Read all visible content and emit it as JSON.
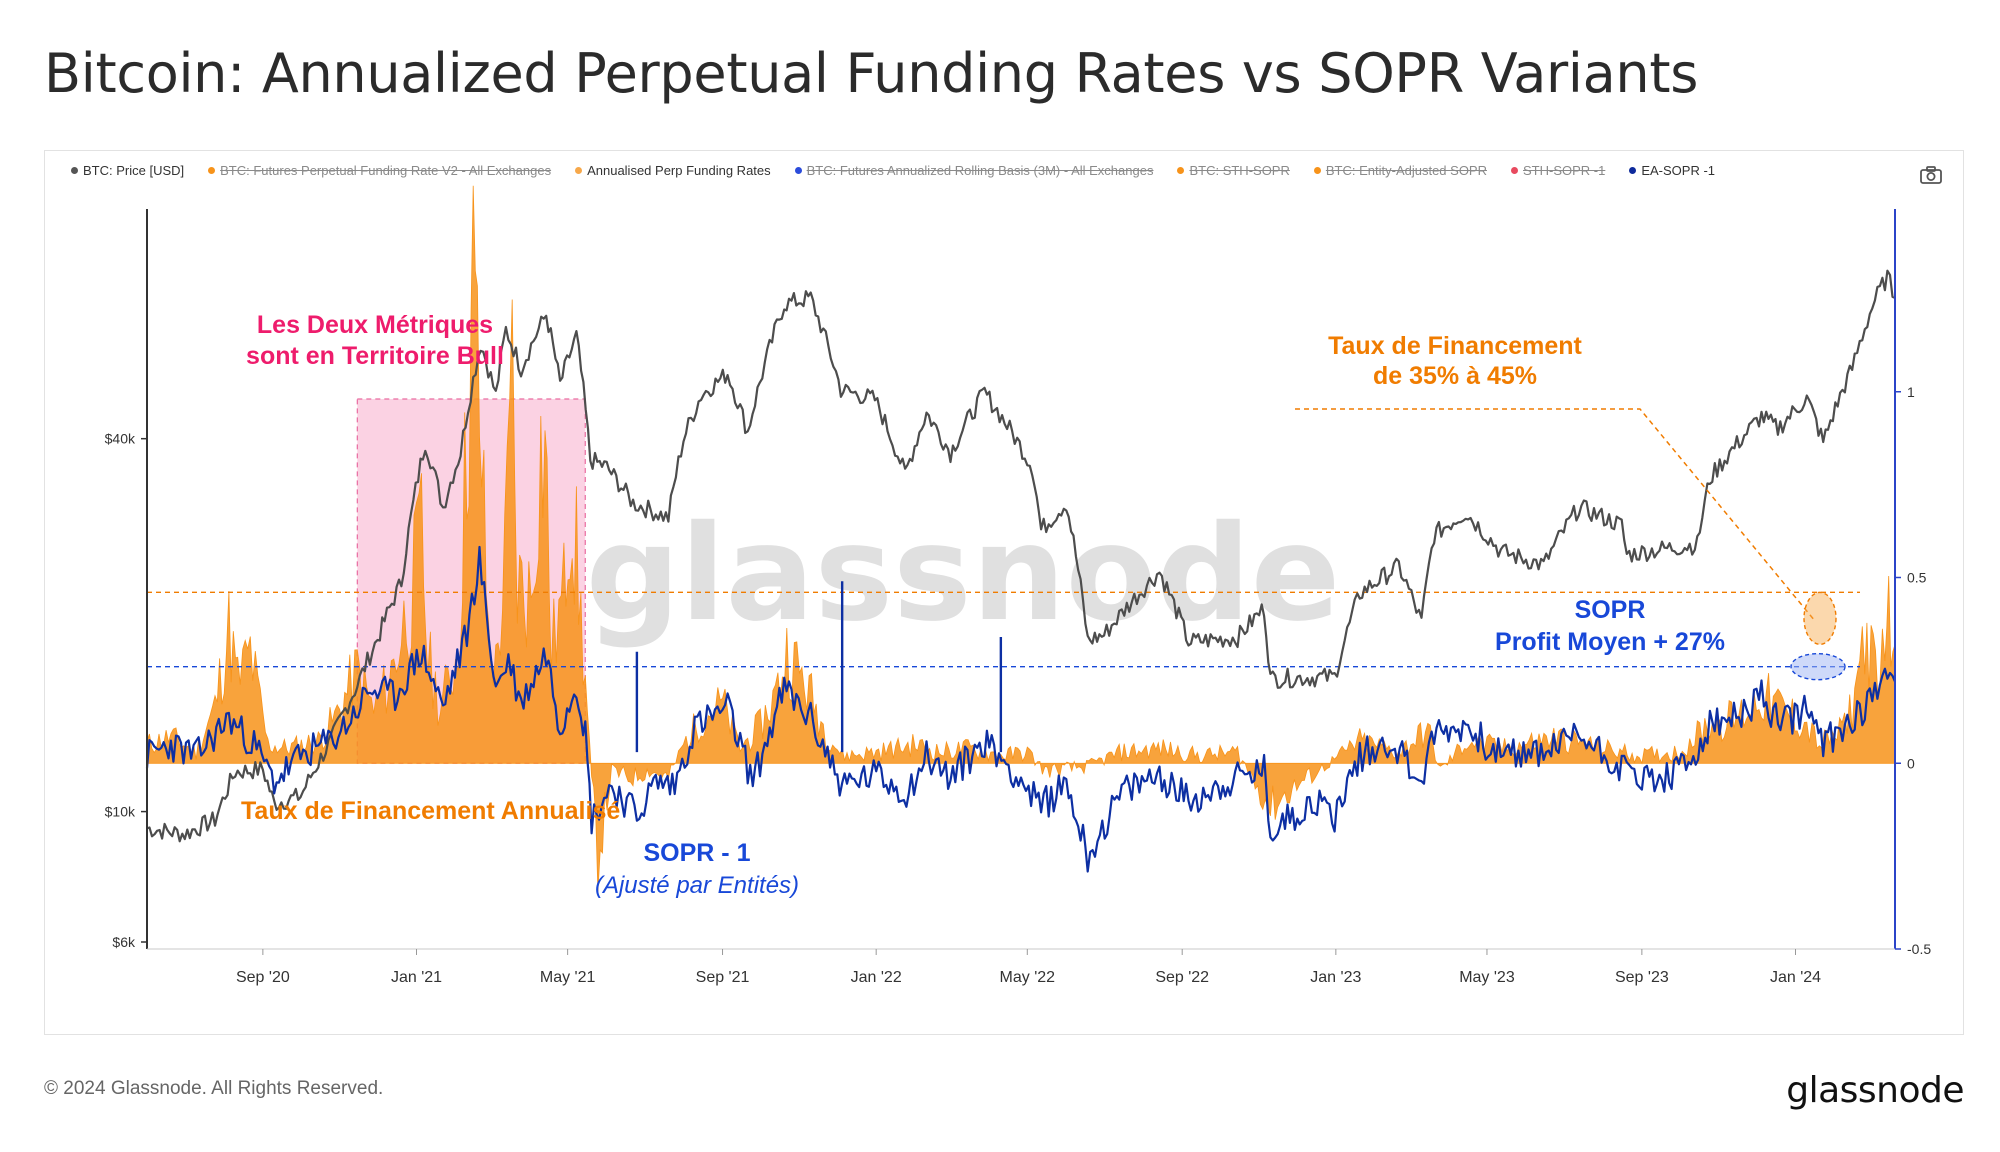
{
  "title": "Bitcoin: Annualized Perpetual Funding Rates vs SOPR Variants",
  "legend": [
    {
      "label": "BTC: Price [USD]",
      "color": "#555555",
      "enabled": true
    },
    {
      "label": "BTC: Futures Perpetual Funding Rate V2 - All Exchanges",
      "color": "#f7931a",
      "enabled": false
    },
    {
      "label": "Annualised Perp Funding Rates",
      "color": "#f7a84a",
      "enabled": true
    },
    {
      "label": "BTC: Futures Annualized Rolling Basis (3M) - All Exchanges",
      "color": "#2b4cdb",
      "enabled": false
    },
    {
      "label": "BTC: STH-SOPR",
      "color": "#f7931a",
      "enabled": false
    },
    {
      "label": "BTC: Entity-Adjusted SOPR",
      "color": "#f7931a",
      "enabled": false
    },
    {
      "label": "STH-SOPR -1",
      "color": "#e84a5f",
      "enabled": false
    },
    {
      "label": "EA-SOPR -1",
      "color": "#0e2a9c",
      "enabled": true
    }
  ],
  "watermark": "glassnode",
  "annotations": {
    "bull_box": "Les Deux Métriques sont en Territoire Bull",
    "funding_high_1": "Taux de Financement",
    "funding_high_2": "de 35% à 45%",
    "sopr_high_1": "SOPR",
    "sopr_high_2": "Profit Moyen + 27%",
    "funding_label": "Taux de Financement Annualisé",
    "sopr_label_1": "SOPR - 1",
    "sopr_label_2": "(Ajusté par Entités)"
  },
  "colors": {
    "price": "#4d4d4d",
    "funding": "#f7931a",
    "sopr": "#0d2fa3",
    "annot_orange": "#f07c00",
    "annot_blue": "#1848d8",
    "annot_pink": "#ee1c6c",
    "left_axis": "#333333",
    "right_axis": "#2b44c8"
  },
  "footer": {
    "copyright": "© 2024 Glassnode. All Rights Reserved.",
    "logo": "glassnode"
  },
  "chart_data": {
    "type": "line",
    "x_axis": {
      "ticks": [
        "Sep '20",
        "Jan '21",
        "May '21",
        "Sep '21",
        "Jan '22",
        "May '22",
        "Sep '22",
        "Jan '23",
        "May '23",
        "Sep '23",
        "Jan '24"
      ],
      "range": [
        "2020-06-01",
        "2024-03-20"
      ]
    },
    "y_left": {
      "scale": "log",
      "ticks": [
        {
          "v": 6000,
          "label": "$6k"
        },
        {
          "v": 10000,
          "label": "$10k"
        },
        {
          "v": 40000,
          "label": "$40k"
        }
      ],
      "range": [
        6000,
        95000
      ]
    },
    "y_right": {
      "scale": "linear",
      "ticks": [
        {
          "v": 1,
          "label": "1"
        },
        {
          "v": 0.5,
          "label": "0.5"
        },
        {
          "v": 0,
          "label": "0"
        },
        {
          "v": -0.5,
          "label": "-0.5"
        }
      ],
      "range": [
        -0.5,
        1.5
      ]
    },
    "reference_lines": {
      "funding": 0.46,
      "sopr": 0.26
    },
    "bull_region": [
      "2020-11-15",
      "2021-05-15"
    ],
    "series": [
      {
        "name": "BTC: Price [USD]",
        "axis": "left",
        "kind": "line",
        "points": [
          [
            "2020-06-01",
            9400
          ],
          [
            "2020-07-01",
            9200
          ],
          [
            "2020-07-25",
            9700
          ],
          [
            "2020-08-10",
            11600
          ],
          [
            "2020-09-01",
            11700
          ],
          [
            "2020-09-10",
            10300
          ],
          [
            "2020-10-01",
            10600
          ],
          [
            "2020-10-25",
            13000
          ],
          [
            "2020-11-15",
            16000
          ],
          [
            "2020-12-01",
            19000
          ],
          [
            "2020-12-20",
            23500
          ],
          [
            "2021-01-08",
            39500
          ],
          [
            "2021-01-22",
            31000
          ],
          [
            "2021-02-05",
            38000
          ],
          [
            "2021-02-21",
            57000
          ],
          [
            "2021-03-05",
            47000
          ],
          [
            "2021-03-13",
            60000
          ],
          [
            "2021-03-25",
            52000
          ],
          [
            "2021-04-14",
            63500
          ],
          [
            "2021-04-25",
            49000
          ],
          [
            "2021-05-08",
            58500
          ],
          [
            "2021-05-19",
            37000
          ],
          [
            "2021-06-01",
            36000
          ],
          [
            "2021-06-22",
            31500
          ],
          [
            "2021-07-20",
            29800
          ],
          [
            "2021-08-01",
            40000
          ],
          [
            "2021-08-15",
            47000
          ],
          [
            "2021-09-05",
            51000
          ],
          [
            "2021-09-21",
            41000
          ],
          [
            "2021-10-20",
            66000
          ],
          [
            "2021-11-10",
            67500
          ],
          [
            "2021-12-04",
            48000
          ],
          [
            "2021-12-31",
            46300
          ],
          [
            "2022-01-24",
            35000
          ],
          [
            "2022-02-10",
            44000
          ],
          [
            "2022-03-01",
            38000
          ],
          [
            "2022-03-28",
            47500
          ],
          [
            "2022-05-05",
            36000
          ],
          [
            "2022-05-12",
            28500
          ],
          [
            "2022-06-01",
            31500
          ],
          [
            "2022-06-18",
            18900
          ],
          [
            "2022-07-01",
            19300
          ],
          [
            "2022-08-14",
            24400
          ],
          [
            "2022-09-06",
            18800
          ],
          [
            "2022-10-15",
            19100
          ],
          [
            "2022-11-05",
            21300
          ],
          [
            "2022-11-10",
            16400
          ],
          [
            "2022-12-31",
            16500
          ],
          [
            "2023-01-20",
            22500
          ],
          [
            "2023-02-20",
            24900
          ],
          [
            "2023-03-10",
            20200
          ],
          [
            "2023-03-20",
            28000
          ],
          [
            "2023-04-14",
            30400
          ],
          [
            "2023-05-12",
            26300
          ],
          [
            "2023-06-15",
            25000
          ],
          [
            "2023-07-13",
            31000
          ],
          [
            "2023-08-16",
            29000
          ],
          [
            "2023-08-20",
            26000
          ],
          [
            "2023-09-15",
            26500
          ],
          [
            "2023-10-15",
            27000
          ],
          [
            "2023-10-25",
            34500
          ],
          [
            "2023-12-05",
            43500
          ],
          [
            "2023-12-18",
            41500
          ],
          [
            "2024-01-10",
            46500
          ],
          [
            "2024-01-23",
            39500
          ],
          [
            "2024-02-15",
            52000
          ],
          [
            "2024-03-04",
            67000
          ],
          [
            "2024-03-14",
            73000
          ],
          [
            "2024-03-20",
            67500
          ]
        ]
      },
      {
        "name": "Annualised Perp Funding Rates",
        "axis": "right",
        "kind": "area",
        "points": [
          [
            "2020-06-01",
            0.05
          ],
          [
            "2020-06-20",
            0.07
          ],
          [
            "2020-07-10",
            0.03
          ],
          [
            "2020-07-25",
            0.15
          ],
          [
            "2020-08-05",
            0.36
          ],
          [
            "2020-08-12",
            0.22
          ],
          [
            "2020-08-22",
            0.3
          ],
          [
            "2020-09-05",
            0.05
          ],
          [
            "2020-09-20",
            0.04
          ],
          [
            "2020-10-15",
            0.06
          ],
          [
            "2020-10-28",
            0.12
          ],
          [
            "2020-11-15",
            0.25
          ],
          [
            "2020-11-28",
            0.14
          ],
          [
            "2020-12-10",
            0.22
          ],
          [
            "2020-12-28",
            0.45
          ],
          [
            "2021-01-05",
            0.62
          ],
          [
            "2021-01-10",
            0.28
          ],
          [
            "2021-01-20",
            0.15
          ],
          [
            "2021-02-03",
            0.3
          ],
          [
            "2021-02-10",
            0.87
          ],
          [
            "2021-02-15",
            1.28
          ],
          [
            "2021-02-20",
            0.95
          ],
          [
            "2021-02-27",
            0.35
          ],
          [
            "2021-03-05",
            0.25
          ],
          [
            "2021-03-12",
            0.52
          ],
          [
            "2021-03-18",
            1.02
          ],
          [
            "2021-03-22",
            0.48
          ],
          [
            "2021-04-02",
            0.45
          ],
          [
            "2021-04-08",
            0.8
          ],
          [
            "2021-04-13",
            0.88
          ],
          [
            "2021-04-18",
            0.3
          ],
          [
            "2021-04-28",
            0.45
          ],
          [
            "2021-05-03",
            0.75
          ],
          [
            "2021-05-08",
            0.55
          ],
          [
            "2021-05-15",
            0.22
          ],
          [
            "2021-05-20",
            -0.05
          ],
          [
            "2021-05-25",
            -0.25
          ],
          [
            "2021-06-05",
            -0.02
          ],
          [
            "2021-06-20",
            -0.04
          ],
          [
            "2021-07-05",
            -0.02
          ],
          [
            "2021-07-20",
            -0.04
          ],
          [
            "2021-08-01",
            0.05
          ],
          [
            "2021-08-15",
            0.12
          ],
          [
            "2021-09-01",
            0.16
          ],
          [
            "2021-09-15",
            0.04
          ],
          [
            "2021-10-01",
            0.1
          ],
          [
            "2021-10-15",
            0.2
          ],
          [
            "2021-10-22",
            0.3
          ],
          [
            "2021-11-05",
            0.22
          ],
          [
            "2021-11-20",
            0.1
          ],
          [
            "2021-12-05",
            0.02
          ],
          [
            "2022-01-01",
            0.03
          ],
          [
            "2022-02-01",
            0.05
          ],
          [
            "2022-02-20",
            0.03
          ],
          [
            "2022-03-15",
            0.04
          ],
          [
            "2022-04-10",
            0.02
          ],
          [
            "2022-05-01",
            0.03
          ],
          [
            "2022-05-15",
            -0.02
          ],
          [
            "2022-06-15",
            -0.01
          ],
          [
            "2022-07-15",
            0.03
          ],
          [
            "2022-08-15",
            0.04
          ],
          [
            "2022-09-15",
            0.02
          ],
          [
            "2022-10-15",
            0.03
          ],
          [
            "2022-11-10",
            -0.12
          ],
          [
            "2022-12-01",
            -0.06
          ],
          [
            "2022-12-31",
            0.01
          ],
          [
            "2023-01-20",
            0.06
          ],
          [
            "2023-02-20",
            0.03
          ],
          [
            "2023-03-15",
            0.09
          ],
          [
            "2023-03-25",
            -0.02
          ],
          [
            "2023-04-15",
            0.06
          ],
          [
            "2023-05-15",
            0.04
          ],
          [
            "2023-06-25",
            0.07
          ],
          [
            "2023-08-01",
            0.04
          ],
          [
            "2023-09-01",
            0.02
          ],
          [
            "2023-10-01",
            0.03
          ],
          [
            "2023-10-25",
            0.11
          ],
          [
            "2023-11-15",
            0.12
          ],
          [
            "2023-12-05",
            0.18
          ],
          [
            "2023-12-20",
            0.15
          ],
          [
            "2024-01-10",
            0.1
          ],
          [
            "2024-01-20",
            0.05
          ],
          [
            "2024-02-05",
            0.08
          ],
          [
            "2024-02-15",
            0.15
          ],
          [
            "2024-02-25",
            0.35
          ],
          [
            "2024-03-01",
            0.28
          ],
          [
            "2024-03-08",
            0.18
          ],
          [
            "2024-03-12",
            0.44
          ],
          [
            "2024-03-15",
            0.38
          ],
          [
            "2024-03-20",
            0.32
          ]
        ]
      },
      {
        "name": "EA-SOPR -1",
        "axis": "right",
        "kind": "line",
        "points": [
          [
            "2020-06-01",
            0.02
          ],
          [
            "2020-06-20",
            0.05
          ],
          [
            "2020-07-10",
            0.02
          ],
          [
            "2020-08-05",
            0.12
          ],
          [
            "2020-08-25",
            0.05
          ],
          [
            "2020-09-10",
            -0.05
          ],
          [
            "2020-10-01",
            0.02
          ],
          [
            "2020-10-25",
            0.06
          ],
          [
            "2020-11-10",
            0.12
          ],
          [
            "2020-11-25",
            0.2
          ],
          [
            "2020-12-15",
            0.18
          ],
          [
            "2021-01-05",
            0.3
          ],
          [
            "2021-01-22",
            0.15
          ],
          [
            "2021-02-10",
            0.35
          ],
          [
            "2021-02-20",
            0.55
          ],
          [
            "2021-03-05",
            0.2
          ],
          [
            "2021-03-15",
            0.28
          ],
          [
            "2021-03-25",
            0.16
          ],
          [
            "2021-04-14",
            0.3
          ],
          [
            "2021-04-25",
            0.1
          ],
          [
            "2021-05-08",
            0.22
          ],
          [
            "2021-05-15",
            0.08
          ],
          [
            "2021-05-20",
            -0.15
          ],
          [
            "2021-06-05",
            -0.06
          ],
          [
            "2021-06-25",
            -0.14
          ],
          [
            "2021-07-10",
            -0.05
          ],
          [
            "2021-07-25",
            -0.06
          ],
          [
            "2021-08-10",
            0.1
          ],
          [
            "2021-09-05",
            0.15
          ],
          [
            "2021-09-25",
            -0.05
          ],
          [
            "2021-10-20",
            0.2
          ],
          [
            "2021-11-10",
            0.12
          ],
          [
            "2021-12-05",
            -0.06
          ],
          [
            "2022-01-01",
            -0.03
          ],
          [
            "2022-01-25",
            -0.08
          ],
          [
            "2022-02-10",
            0.02
          ],
          [
            "2022-03-01",
            -0.04
          ],
          [
            "2022-03-28",
            0.06
          ],
          [
            "2022-04-20",
            -0.02
          ],
          [
            "2022-05-12",
            -0.12
          ],
          [
            "2022-06-01",
            -0.05
          ],
          [
            "2022-06-18",
            -0.25
          ],
          [
            "2022-07-15",
            -0.08
          ],
          [
            "2022-08-14",
            -0.03
          ],
          [
            "2022-09-06",
            -0.1
          ],
          [
            "2022-10-15",
            -0.04
          ],
          [
            "2022-11-05",
            -0.02
          ],
          [
            "2022-11-10",
            -0.18
          ],
          [
            "2022-12-15",
            -0.1
          ],
          [
            "2022-12-31",
            -0.14
          ],
          [
            "2023-01-20",
            0.02
          ],
          [
            "2023-02-15",
            0.06
          ],
          [
            "2023-03-10",
            -0.05
          ],
          [
            "2023-03-20",
            0.08
          ],
          [
            "2023-04-14",
            0.1
          ],
          [
            "2023-05-12",
            0.02
          ],
          [
            "2023-06-15",
            0.03
          ],
          [
            "2023-07-13",
            0.08
          ],
          [
            "2023-08-20",
            -0.02
          ],
          [
            "2023-09-15",
            -0.05
          ],
          [
            "2023-10-10",
            0.0
          ],
          [
            "2023-10-25",
            0.1
          ],
          [
            "2023-11-15",
            0.12
          ],
          [
            "2023-12-05",
            0.18
          ],
          [
            "2023-12-20",
            0.1
          ],
          [
            "2024-01-10",
            0.15
          ],
          [
            "2024-01-23",
            0.05
          ],
          [
            "2024-02-15",
            0.12
          ],
          [
            "2024-03-04",
            0.18
          ],
          [
            "2024-03-12",
            0.28
          ],
          [
            "2024-03-20",
            0.22
          ]
        ]
      }
    ],
    "spikes": {
      "name": "EA-SOPR -1",
      "points": [
        [
          "2021-06-25",
          0.3
        ],
        [
          "2021-12-05",
          0.49
        ],
        [
          "2022-04-10",
          0.34
        ]
      ]
    }
  }
}
